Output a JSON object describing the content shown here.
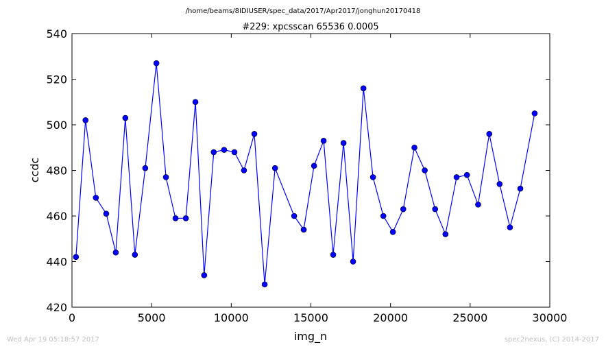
{
  "chart_data": {
    "type": "line",
    "suptitle": "/home/beams/8IDIUSER/spec_data/2017/Apr2017/jonghun20170418",
    "title": "#229: xpcsscan 65536 0.0005",
    "xlabel": "img_n",
    "ylabel": "ccdc",
    "xlim": [
      0,
      30000
    ],
    "ylim": [
      420,
      540
    ],
    "xticks": [
      0,
      5000,
      10000,
      15000,
      20000,
      25000,
      30000
    ],
    "xtick_labels": [
      "0",
      "5000",
      "10000",
      "15000",
      "20000",
      "25000",
      "30000"
    ],
    "yticks": [
      420,
      440,
      460,
      480,
      500,
      520,
      540
    ],
    "ytick_labels": [
      "420",
      "440",
      "460",
      "480",
      "500",
      "520",
      "540"
    ],
    "grid": false,
    "series": [
      {
        "color": "#0000ff",
        "marker": "circle",
        "points": [
          [
            250,
            442
          ],
          [
            850,
            502
          ],
          [
            1500,
            468
          ],
          [
            2150,
            461
          ],
          [
            2750,
            444
          ],
          [
            3350,
            503
          ],
          [
            3950,
            443
          ],
          [
            4600,
            481
          ],
          [
            5300,
            527
          ],
          [
            5900,
            477
          ],
          [
            6500,
            459
          ],
          [
            7150,
            459
          ],
          [
            7750,
            510
          ],
          [
            8300,
            434
          ],
          [
            8900,
            488
          ],
          [
            9550,
            489
          ],
          [
            10200,
            488
          ],
          [
            10800,
            480
          ],
          [
            11450,
            496
          ],
          [
            12100,
            430
          ],
          [
            12750,
            481
          ],
          [
            13950,
            460
          ],
          [
            14550,
            454
          ],
          [
            15200,
            482
          ],
          [
            15800,
            493
          ],
          [
            16400,
            443
          ],
          [
            17050,
            492
          ],
          [
            17650,
            440
          ],
          [
            18300,
            516
          ],
          [
            18900,
            477
          ],
          [
            19550,
            460
          ],
          [
            20150,
            453
          ],
          [
            20800,
            463
          ],
          [
            21500,
            490
          ],
          [
            22150,
            480
          ],
          [
            22800,
            463
          ],
          [
            23450,
            452
          ],
          [
            24150,
            477
          ],
          [
            24800,
            478
          ],
          [
            25500,
            465
          ],
          [
            26200,
            496
          ],
          [
            26850,
            474
          ],
          [
            27500,
            455
          ],
          [
            28150,
            472
          ],
          [
            29050,
            505
          ]
        ]
      }
    ]
  },
  "footer": {
    "timestamp": "Wed Apr 19 05:18:57 2017",
    "credit": "spec2nexus, (C) 2014-2017"
  }
}
